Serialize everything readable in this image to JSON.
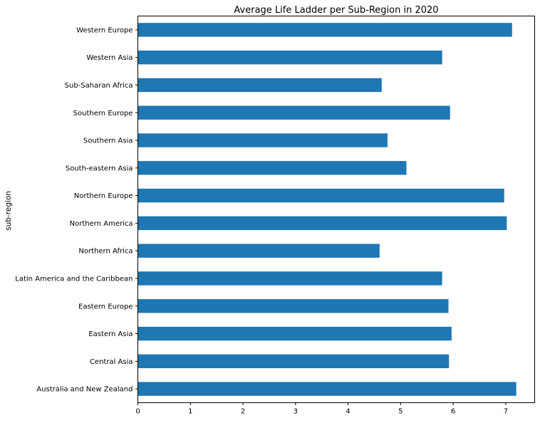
{
  "chart_data": {
    "type": "bar",
    "orientation": "horizontal",
    "title": "Average Life Ladder per Sub-Region in 2020",
    "xlabel": "",
    "ylabel": "sub-region",
    "xlim": [
      0,
      7.55
    ],
    "xticks": [
      "0",
      "1",
      "2",
      "3",
      "4",
      "5",
      "6",
      "7"
    ],
    "grid": false,
    "bar_color": "#1f77b4",
    "categories": [
      "Australia and New Zealand",
      "Central Asia",
      "Eastern Asia",
      "Eastern Europe",
      "Latin America and the Caribbean",
      "Northern Africa",
      "Northern America",
      "Northern Europe",
      "South-eastern Asia",
      "Southern Asia",
      "Southern Europe",
      "Sub-Saharan Africa",
      "Western Asia",
      "Western Europe"
    ],
    "values": [
      7.2,
      5.92,
      5.97,
      5.91,
      5.79,
      4.6,
      7.02,
      6.97,
      5.11,
      4.75,
      5.94,
      4.64,
      5.79,
      7.12
    ]
  }
}
